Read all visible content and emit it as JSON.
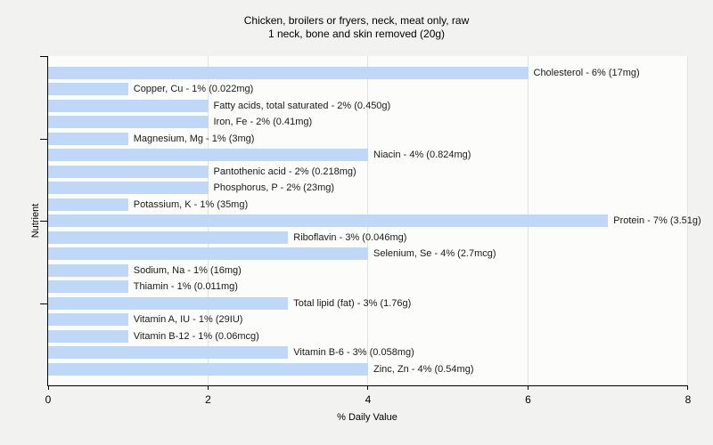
{
  "title": {
    "line1": "Chicken, broilers or fryers, neck, meat only, raw",
    "line2": "1 neck, bone and skin removed (20g)"
  },
  "chart_data": {
    "type": "bar",
    "orientation": "horizontal",
    "title": "Chicken, broilers or fryers, neck, meat only, raw",
    "subtitle": "1 neck, bone and skin removed (20g)",
    "xlabel": "% Daily Value",
    "ylabel": "Nutrient",
    "xlim": [
      0,
      8
    ],
    "xticks": [
      "0",
      "2",
      "4",
      "6",
      "8"
    ],
    "grid": "vertical gridlines at x = 2, 4, 6, 8",
    "legend_position": "none",
    "bars": [
      {
        "nutrient": "Cholesterol",
        "percent_daily_value": 6,
        "amount": "17mg",
        "label": "Cholesterol - 6% (17mg)"
      },
      {
        "nutrient": "Copper, Cu",
        "percent_daily_value": 1,
        "amount": "0.022mg",
        "label": "Copper, Cu - 1% (0.022mg)"
      },
      {
        "nutrient": "Fatty acids, total saturated",
        "percent_daily_value": 2,
        "amount": "0.450g",
        "label": "Fatty acids, total saturated - 2% (0.450g)"
      },
      {
        "nutrient": "Iron, Fe",
        "percent_daily_value": 2,
        "amount": "0.41mg",
        "label": "Iron, Fe - 2% (0.41mg)"
      },
      {
        "nutrient": "Magnesium, Mg",
        "percent_daily_value": 1,
        "amount": "3mg",
        "label": "Magnesium, Mg - 1% (3mg)"
      },
      {
        "nutrient": "Niacin",
        "percent_daily_value": 4,
        "amount": "0.824mg",
        "label": "Niacin - 4% (0.824mg)"
      },
      {
        "nutrient": "Pantothenic acid",
        "percent_daily_value": 2,
        "amount": "0.218mg",
        "label": "Pantothenic acid - 2% (0.218mg)"
      },
      {
        "nutrient": "Phosphorus, P",
        "percent_daily_value": 2,
        "amount": "23mg",
        "label": "Phosphorus, P - 2% (23mg)"
      },
      {
        "nutrient": "Potassium, K",
        "percent_daily_value": 1,
        "amount": "35mg",
        "label": "Potassium, K - 1% (35mg)"
      },
      {
        "nutrient": "Protein",
        "percent_daily_value": 7,
        "amount": "3.51g",
        "label": "Protein - 7% (3.51g)"
      },
      {
        "nutrient": "Riboflavin",
        "percent_daily_value": 3,
        "amount": "0.046mg",
        "label": "Riboflavin - 3% (0.046mg)"
      },
      {
        "nutrient": "Selenium, Se",
        "percent_daily_value": 4,
        "amount": "2.7mcg",
        "label": "Selenium, Se - 4% (2.7mcg)"
      },
      {
        "nutrient": "Sodium, Na",
        "percent_daily_value": 1,
        "amount": "16mg",
        "label": "Sodium, Na - 1% (16mg)"
      },
      {
        "nutrient": "Thiamin",
        "percent_daily_value": 1,
        "amount": "0.011mg",
        "label": "Thiamin - 1% (0.011mg)"
      },
      {
        "nutrient": "Total lipid (fat)",
        "percent_daily_value": 3,
        "amount": "1.76g",
        "label": "Total lipid (fat) - 3% (1.76g)"
      },
      {
        "nutrient": "Vitamin A, IU",
        "percent_daily_value": 1,
        "amount": "29IU",
        "label": "Vitamin A, IU - 1% (29IU)"
      },
      {
        "nutrient": "Vitamin B-12",
        "percent_daily_value": 1,
        "amount": "0.06mcg",
        "label": "Vitamin B-12 - 1% (0.06mcg)"
      },
      {
        "nutrient": "Vitamin B-6",
        "percent_daily_value": 3,
        "amount": "0.058mg",
        "label": "Vitamin B-6 - 3% (0.058mg)"
      },
      {
        "nutrient": "Zinc, Zn",
        "percent_daily_value": 4,
        "amount": "0.54mg",
        "label": "Zinc, Zn - 4% (0.54mg)"
      }
    ],
    "colors": {
      "bar_fill": "#bfd8f7",
      "plot_background": "#fcfcfb",
      "page_background": "#f2f2f0",
      "gridline": "#e2e2df",
      "axis": "#000000",
      "text": "#1a1a1a"
    }
  }
}
